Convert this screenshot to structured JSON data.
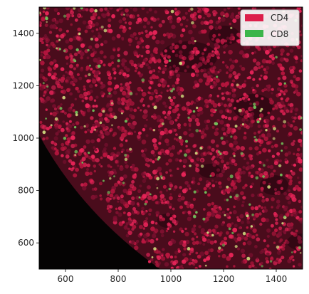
{
  "image": {
    "description_colors": {
      "background": "#050303",
      "cd4_channel": "#dc1e4a",
      "cd8_channel": "#3cb54a"
    },
    "x_range": [
      500,
      1500
    ],
    "y_range": [
      500,
      1500
    ]
  },
  "axes": {
    "x_ticks": [
      {
        "value": 600,
        "label": "600"
      },
      {
        "value": 800,
        "label": "800"
      },
      {
        "value": 1000,
        "label": "1000"
      },
      {
        "value": 1200,
        "label": "1200"
      },
      {
        "value": 1400,
        "label": "1400"
      }
    ],
    "y_ticks": [
      {
        "value": 600,
        "label": "600"
      },
      {
        "value": 800,
        "label": "800"
      },
      {
        "value": 1000,
        "label": "1000"
      },
      {
        "value": 1200,
        "label": "1200"
      },
      {
        "value": 1400,
        "label": "1400"
      }
    ]
  },
  "legend": {
    "placement": "top-right",
    "entries": [
      {
        "name": "CD4",
        "color": "#dc1e4a"
      },
      {
        "name": "CD8",
        "color": "#3cb54a"
      }
    ]
  }
}
